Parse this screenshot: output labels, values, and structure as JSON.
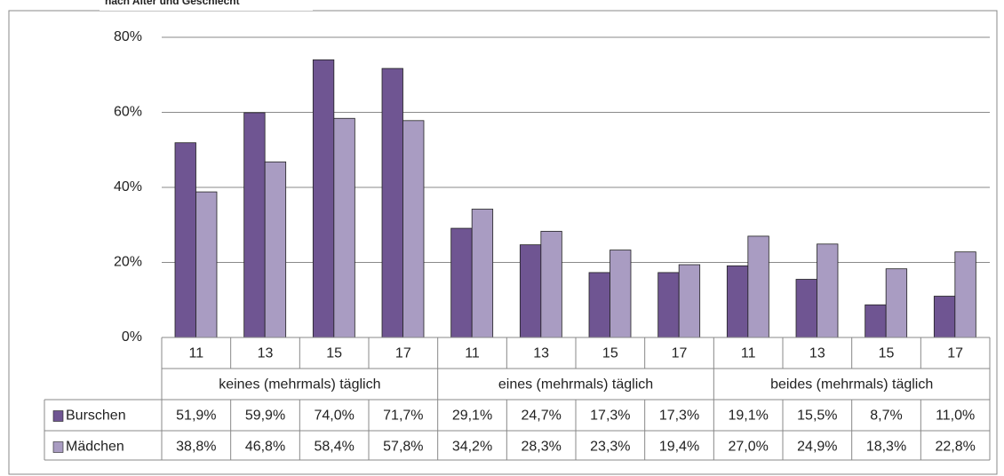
{
  "chart_data": {
    "type": "bar",
    "subtitle": "nach Alter und Geschlecht",
    "categories": [
      "11",
      "13",
      "15",
      "17",
      "11",
      "13",
      "15",
      "17",
      "11",
      "13",
      "15",
      "17"
    ],
    "groups": [
      "keines (mehrmals) täglich",
      "eines (mehrmals) täglich",
      "beides (mehrmals) täglich"
    ],
    "series": [
      {
        "name": "Burschen",
        "color": "#6f5592",
        "values": [
          51.9,
          59.9,
          74.0,
          71.7,
          29.1,
          24.7,
          17.3,
          17.3,
          19.1,
          15.5,
          8.7,
          11.0
        ],
        "value_labels": [
          "51,9%",
          "59,9%",
          "74,0%",
          "71,7%",
          "29,1%",
          "24,7%",
          "17,3%",
          "17,3%",
          "19,1%",
          "15,5%",
          "8,7%",
          "11,0%"
        ]
      },
      {
        "name": "Mädchen",
        "color": "#a99cc2",
        "values": [
          38.8,
          46.8,
          58.4,
          57.8,
          34.2,
          28.3,
          23.3,
          19.4,
          27.0,
          24.9,
          18.3,
          22.8
        ],
        "value_labels": [
          "38,8%",
          "46,8%",
          "58,4%",
          "57,8%",
          "34,2%",
          "28,3%",
          "23,3%",
          "19,4%",
          "27,0%",
          "24,9%",
          "18,3%",
          "22,8%"
        ]
      }
    ],
    "ylim": [
      0,
      80
    ],
    "yticks": [
      {
        "value": 0,
        "label": "0%"
      },
      {
        "value": 20,
        "label": "20%"
      },
      {
        "value": 40,
        "label": "40%"
      },
      {
        "value": 60,
        "label": "60%"
      },
      {
        "value": 80,
        "label": "80%"
      }
    ],
    "grid": true
  }
}
